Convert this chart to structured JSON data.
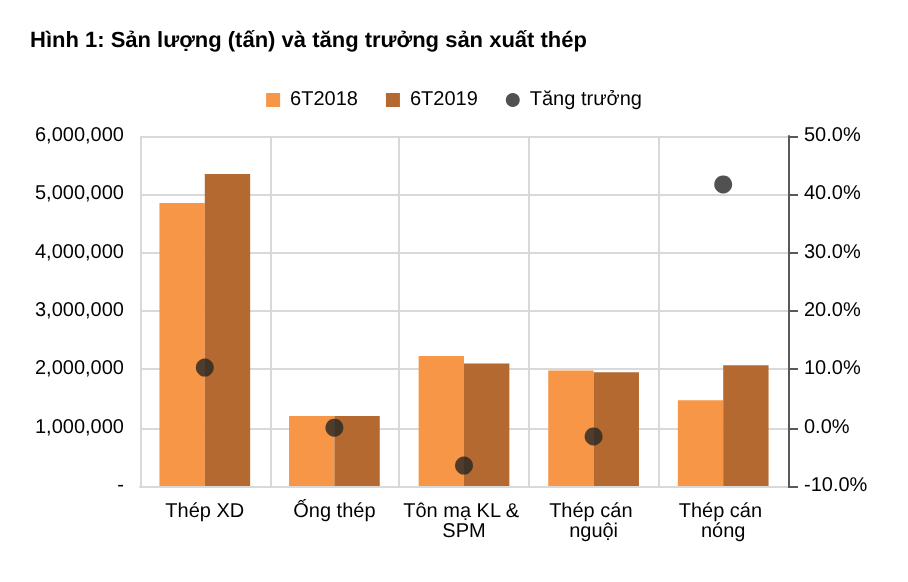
{
  "chart_data": {
    "type": "bar",
    "title": "Hình 1: Sản lượng (tấn) và tăng trưởng sản xuất thép",
    "categories": [
      "Thép XD",
      "Ống thép",
      "Tôn mạ KL & SPM",
      "Thép cán nguội",
      "Thép cán nóng"
    ],
    "series": [
      {
        "name": "6T2018",
        "color": "#f79646",
        "values": [
          4850000,
          1200000,
          2230000,
          1980000,
          1470000
        ]
      },
      {
        "name": "6T2019",
        "color": "#b3692f",
        "values": [
          5350000,
          1200000,
          2100000,
          1950000,
          2070000
        ]
      },
      {
        "name": "Tăng trưởng",
        "type": "scatter",
        "axis": "y2",
        "color": "#262626",
        "values": [
          10.3,
          0.0,
          -6.5,
          -1.5,
          41.7
        ]
      }
    ],
    "ylim": [
      0,
      6000000
    ],
    "yticks": [
      {
        "value": 0,
        "label": "-"
      },
      {
        "value": 1000000,
        "label": "1,000,000"
      },
      {
        "value": 2000000,
        "label": "2,000,000"
      },
      {
        "value": 3000000,
        "label": "3,000,000"
      },
      {
        "value": 4000000,
        "label": "4,000,000"
      },
      {
        "value": 5000000,
        "label": "5,000,000"
      },
      {
        "value": 6000000,
        "label": "6,000,000"
      }
    ],
    "y2lim": [
      -10,
      50
    ],
    "y2ticks": [
      {
        "value": -10,
        "label": "-10.0%"
      },
      {
        "value": 0,
        "label": "0.0%"
      },
      {
        "value": 10,
        "label": "10.0%"
      },
      {
        "value": 20,
        "label": "20.0%"
      },
      {
        "value": 30,
        "label": "30.0%"
      },
      {
        "value": 40,
        "label": "40.0%"
      },
      {
        "value": 50,
        "label": "50.0%"
      }
    ],
    "grid": true,
    "legend": "top",
    "marker": "circle"
  }
}
